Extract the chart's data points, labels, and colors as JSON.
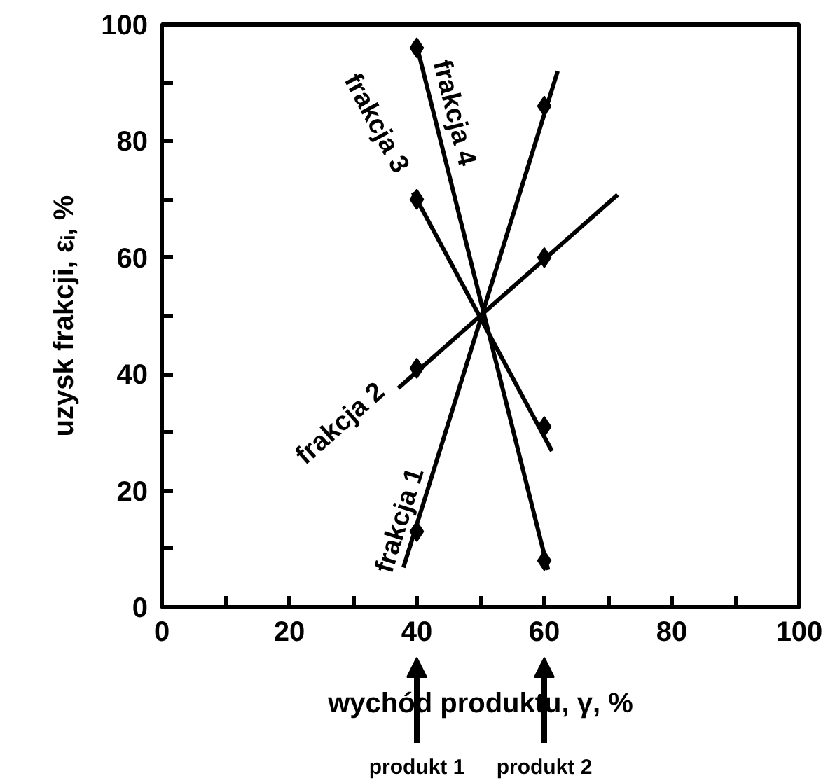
{
  "chart_data": {
    "type": "line",
    "xlabel": "wychód produktu, γ, %",
    "ylabel": "uzysk frakcji, εᵢ, %",
    "xlim": [
      0,
      100
    ],
    "ylim": [
      0,
      100
    ],
    "xticks": [
      0,
      {
        "value": 10,
        "label": null
      },
      20,
      {
        "value": 30,
        "label": null
      },
      40,
      {
        "value": 50,
        "label": null
      },
      60,
      {
        "value": 70,
        "label": null
      },
      80,
      {
        "value": 90,
        "label": null
      },
      100
    ],
    "yticks": [
      0,
      {
        "value": 10,
        "label": null
      },
      20,
      {
        "value": 30,
        "label": null
      },
      40,
      {
        "value": 50,
        "label": null
      },
      60,
      {
        "value": 70,
        "label": null
      },
      80,
      {
        "value": 90,
        "label": null
      },
      100
    ],
    "grid": false,
    "legend": false,
    "series": [
      {
        "name": "frakcja 1",
        "color": "#000000",
        "line_style": "solid",
        "x": [
          37.9,
          62.1
        ],
        "values": [
          6.8,
          92
        ]
      },
      {
        "name": "frakcja 2",
        "color": "#000000",
        "line_style": "solid",
        "x": [
          37.1,
          71.5
        ],
        "values": [
          37.6,
          70.8
        ]
      },
      {
        "name": "frakcja 3",
        "color": "#000000",
        "line_style": "solid",
        "x": [
          39.4,
          61.2
        ],
        "values": [
          71.2,
          26.8
        ]
      },
      {
        "name": "frakcja 4",
        "color": "#000000",
        "line_style": "solid",
        "x": [
          39.8,
          60.6
        ],
        "values": [
          97.2,
          6.4
        ]
      },
      {
        "type": "scatter",
        "color": "#000000",
        "marker": "diamond",
        "x": [
          40,
          40,
          40,
          40,
          60,
          60,
          60,
          60
        ],
        "values": [
          13,
          41,
          70,
          96,
          86,
          60,
          31,
          8
        ]
      }
    ],
    "annotations": [
      "produkt 1",
      "produkt 2"
    ]
  }
}
